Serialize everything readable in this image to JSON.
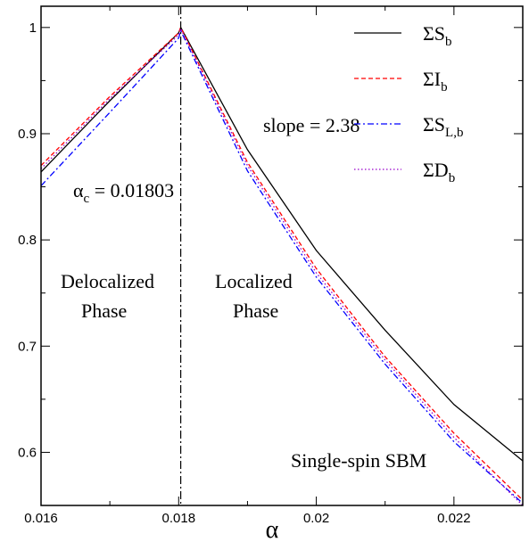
{
  "chart_data": {
    "type": "line",
    "title": "",
    "xlabel": "α",
    "ylabel": "",
    "xlim": [
      0.016,
      0.023
    ],
    "ylim": [
      0.55,
      1.02
    ],
    "xticks": [
      0.016,
      0.018,
      0.02,
      0.022
    ],
    "xtick_labels": [
      "0.016",
      "0.018",
      "0.02",
      "0.022"
    ],
    "yticks": [
      0.6,
      0.7,
      0.8,
      0.9,
      1.0
    ],
    "ytick_labels": [
      "0.6",
      "0.7",
      "0.8",
      "0.9",
      "1"
    ],
    "grid": false,
    "legend_position": "top-right",
    "vline_x": 0.01803,
    "series": [
      {
        "name_main": "ΣS",
        "name_sub": "b",
        "color": "#000000",
        "dash": "",
        "x": [
          0.016,
          0.017,
          0.018,
          0.01803,
          0.019,
          0.02,
          0.021,
          0.022,
          0.023
        ],
        "y": [
          0.864,
          0.931,
          0.995,
          1.0,
          0.885,
          0.79,
          0.715,
          0.645,
          0.592
        ]
      },
      {
        "name_main": "ΣI",
        "name_sub": "b",
        "color": "#ff0000",
        "dash": "5,3",
        "x": [
          0.016,
          0.017,
          0.018,
          0.01803,
          0.019,
          0.02,
          0.021,
          0.022,
          0.023
        ],
        "y": [
          0.87,
          0.935,
          0.995,
          1.0,
          0.873,
          0.773,
          0.69,
          0.618,
          0.555
        ]
      },
      {
        "name_main": "ΣS",
        "name_sub": "L,b",
        "color": "#0000ff",
        "dash": "7,3,2,3",
        "x": [
          0.016,
          0.017,
          0.018,
          0.01803,
          0.019,
          0.02,
          0.021,
          0.022,
          0.023
        ],
        "y": [
          0.851,
          0.92,
          0.99,
          0.997,
          0.865,
          0.765,
          0.683,
          0.61,
          0.552
        ]
      },
      {
        "name_main": "ΣD",
        "name_sub": "b",
        "color": "#9900cc",
        "dash": "1.5,2.5",
        "x": [
          0.016,
          0.017,
          0.018,
          0.01803,
          0.019,
          0.02,
          0.021,
          0.022,
          0.023
        ],
        "y": [
          0.867,
          0.933,
          0.993,
          0.999,
          0.87,
          0.769,
          0.687,
          0.614,
          0.55
        ]
      }
    ],
    "annotations": {
      "alpha_c_symbol": "α",
      "alpha_c_sub": "c",
      "alpha_c_value": " = 0.01803",
      "slope": "slope = 2.38",
      "delocalized_line1": "Delocalized",
      "delocalized_line2": "Phase",
      "localized_line1": "Localized",
      "localized_line2": "Phase",
      "model": "Single-spin SBM"
    }
  }
}
